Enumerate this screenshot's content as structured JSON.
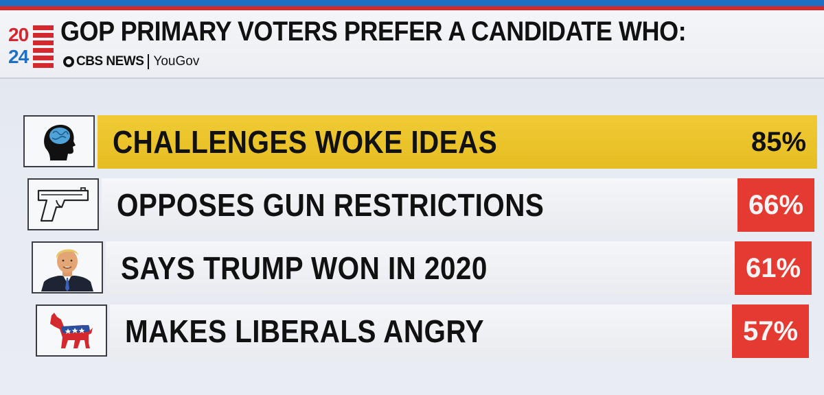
{
  "header": {
    "logo_year_top": "20",
    "logo_year_bottom": "24",
    "title": "GOP PRIMARY VOTERS PREFER A CANDIDATE WHO:",
    "source_primary": "CBS NEWS",
    "source_secondary": "YouGov"
  },
  "colors": {
    "highlight_bar": "#e8c12a",
    "percent_box": "#e43a32",
    "top_strip": "#1f6fc4",
    "red_line": "#d3282e"
  },
  "rows": [
    {
      "label": "CHALLENGES WOKE IDEAS",
      "percent": "85%",
      "icon": "brain-head-icon",
      "highlighted": true
    },
    {
      "label": "OPPOSES GUN RESTRICTIONS",
      "percent": "66%",
      "icon": "handgun-icon",
      "highlighted": false
    },
    {
      "label": "SAYS TRUMP WON IN 2020",
      "percent": "61%",
      "icon": "trump-portrait-icon",
      "highlighted": false
    },
    {
      "label": "MAKES LIBERALS ANGRY",
      "percent": "57%",
      "icon": "democrat-donkey-icon",
      "highlighted": false
    }
  ]
}
